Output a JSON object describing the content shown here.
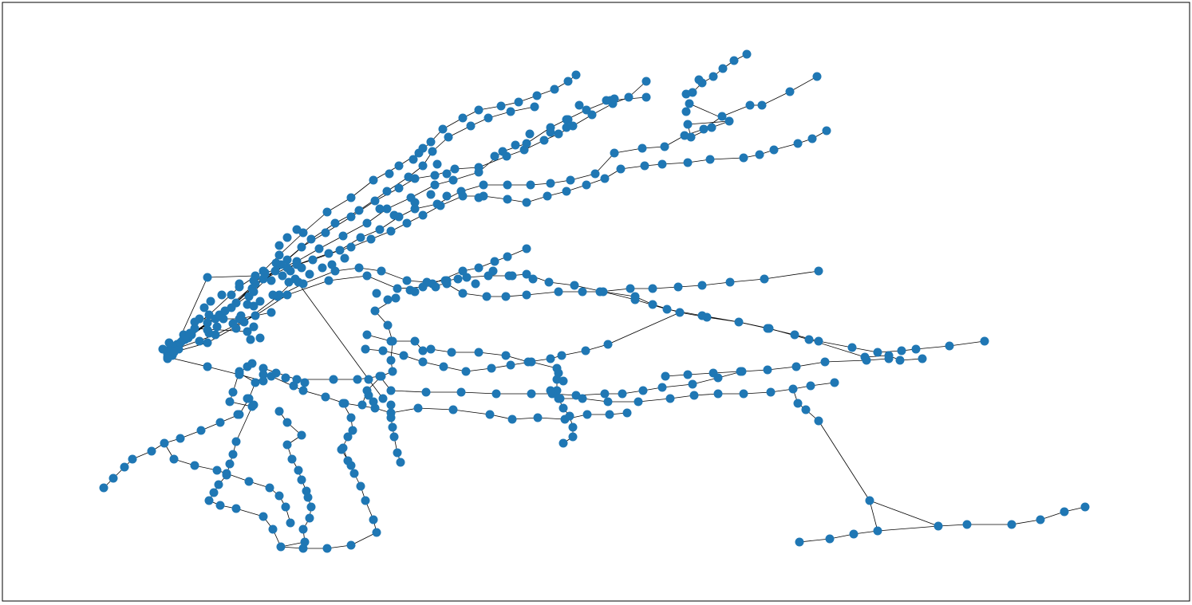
{
  "graph": {
    "node_color": "#1f77b4",
    "edge_color": "#000000",
    "background": "#ffffff",
    "border_color": "#000000"
  }
}
